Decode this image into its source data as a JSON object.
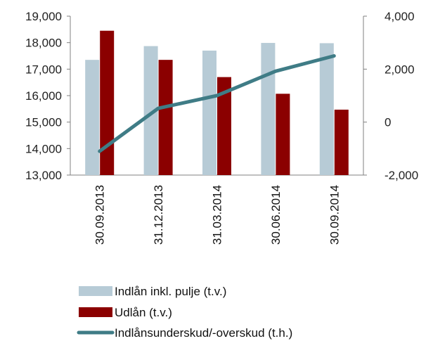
{
  "chart_data": {
    "type": "bar",
    "categories": [
      "30.09.2013",
      "31.12.2013",
      "31.03.2014",
      "30.06.2014",
      "30.09.2014"
    ],
    "series": [
      {
        "name": "Indlån inkl. pulje (t.v.)",
        "type": "bar",
        "axis": "left",
        "color": "#b7cbd6",
        "values": [
          17350,
          17870,
          17700,
          17990,
          17980
        ]
      },
      {
        "name": "Udlån (t.v.)",
        "type": "bar",
        "axis": "left",
        "color": "#8b0000",
        "values": [
          18450,
          17350,
          16700,
          16070,
          15470
        ]
      },
      {
        "name": "Indlånsunderskud/-overskud (t.h.)",
        "type": "line",
        "axis": "right",
        "color": "#3f7c86",
        "values": [
          -1100,
          520,
          1000,
          1920,
          2500
        ]
      }
    ],
    "y_left": {
      "min": 13000,
      "max": 19000,
      "ticks": [
        "13,000",
        "14,000",
        "15,000",
        "16,000",
        "17,000",
        "18,000",
        "19,000"
      ]
    },
    "y_right": {
      "min": -2000,
      "max": 4000,
      "ticks": [
        "-2,000",
        "0",
        "2,000",
        "4,000"
      ]
    },
    "grid": false,
    "legend_position": "bottom"
  }
}
